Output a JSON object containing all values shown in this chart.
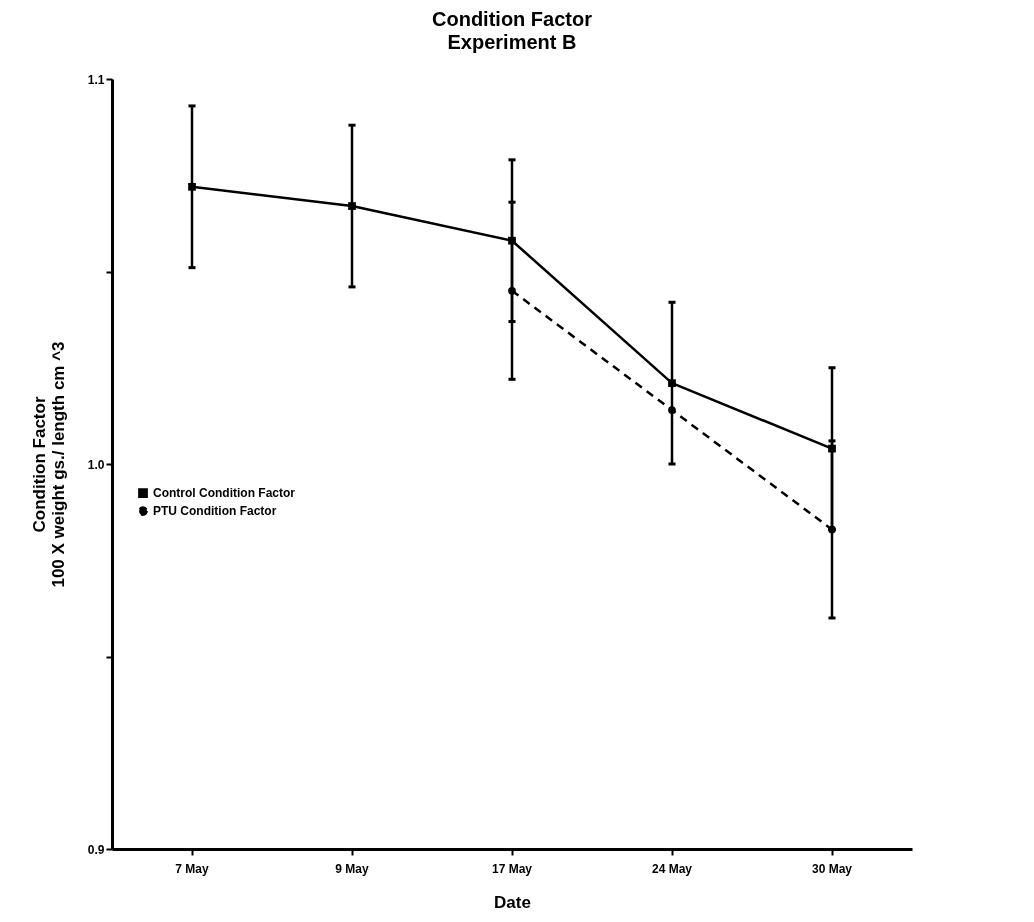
{
  "chart_data": {
    "type": "line",
    "title": "Condition Factor",
    "subtitle": "Experiment B",
    "xlabel": "Date",
    "ylabel": "Condition Factor\n100 X weight gs./  length cm ^3",
    "categories": [
      "7 May",
      "9 May",
      "17 May",
      "24 May",
      "30 May"
    ],
    "series": [
      {
        "name": "Control Condition Factor",
        "color": "#000000",
        "marker": "square",
        "line_style": "solid",
        "values": [
          1.072,
          1.067,
          1.058,
          1.021,
          1.004
        ],
        "errors": [
          0.021,
          0.021,
          0.021,
          0.021,
          0.021
        ]
      },
      {
        "name": "PTU Condition Factor",
        "color": "#000000",
        "marker": "circle",
        "line_style": "dashed",
        "values": [
          null,
          null,
          1.045,
          1.014,
          0.983
        ],
        "errors": [
          null,
          null,
          0.023,
          null,
          0.023
        ]
      }
    ],
    "ylim": [
      0.9,
      1.1
    ],
    "yticks": [
      {
        "value": 0.9,
        "label": "0.9"
      },
      {
        "value": 0.95,
        "label": null
      },
      {
        "value": 1.0,
        "label": "1.0"
      },
      {
        "value": 1.05,
        "label": null
      },
      {
        "value": 1.1,
        "label": "1.1"
      }
    ],
    "grid": false,
    "legend": "left"
  }
}
